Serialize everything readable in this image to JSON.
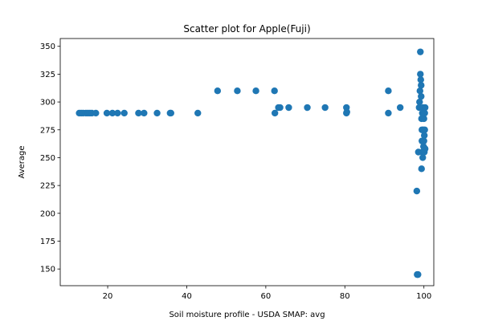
{
  "chart_data": {
    "type": "scatter",
    "title": "Scatter plot for Apple(Fuji)",
    "xlabel": "Soil moisture profile - USDA SMAP: avg",
    "ylabel": "Average",
    "xlim": [
      8,
      102.5
    ],
    "ylim": [
      135,
      357
    ],
    "xticks": [
      20,
      40,
      60,
      80,
      100
    ],
    "yticks": [
      150,
      175,
      200,
      225,
      250,
      275,
      300,
      325,
      350
    ],
    "grid": false,
    "marker_color": "#1f77b4",
    "points": [
      [
        12.8,
        290
      ],
      [
        13.3,
        290
      ],
      [
        13.8,
        290
      ],
      [
        14.5,
        290
      ],
      [
        15.0,
        290
      ],
      [
        15.5,
        290
      ],
      [
        16.0,
        290
      ],
      [
        17.0,
        290
      ],
      [
        19.8,
        290
      ],
      [
        21.2,
        290
      ],
      [
        22.5,
        290
      ],
      [
        24.2,
        290
      ],
      [
        27.8,
        290
      ],
      [
        29.2,
        290
      ],
      [
        32.5,
        290
      ],
      [
        35.8,
        290
      ],
      [
        36.0,
        290
      ],
      [
        42.8,
        290
      ],
      [
        47.8,
        310
      ],
      [
        52.8,
        310
      ],
      [
        57.5,
        310
      ],
      [
        62.2,
        310
      ],
      [
        62.3,
        290
      ],
      [
        63.2,
        295
      ],
      [
        63.6,
        295
      ],
      [
        65.8,
        295
      ],
      [
        70.5,
        295
      ],
      [
        75.0,
        295
      ],
      [
        80.4,
        295
      ],
      [
        80.4,
        290
      ],
      [
        80.5,
        291
      ],
      [
        91.0,
        310
      ],
      [
        91.0,
        290
      ],
      [
        94.0,
        295
      ],
      [
        98.2,
        220
      ],
      [
        98.3,
        145
      ],
      [
        98.5,
        145
      ],
      [
        98.6,
        255
      ],
      [
        98.8,
        295
      ],
      [
        98.9,
        300
      ],
      [
        99.0,
        310
      ],
      [
        99.1,
        345
      ],
      [
        99.1,
        325
      ],
      [
        99.2,
        320
      ],
      [
        99.3,
        315
      ],
      [
        99.3,
        305
      ],
      [
        99.4,
        285
      ],
      [
        99.4,
        240
      ],
      [
        99.5,
        275
      ],
      [
        99.5,
        265
      ],
      [
        99.6,
        290
      ],
      [
        99.6,
        255
      ],
      [
        99.7,
        250
      ],
      [
        99.8,
        275
      ],
      [
        99.8,
        295
      ],
      [
        99.9,
        260
      ],
      [
        100.0,
        285
      ],
      [
        100.0,
        265
      ],
      [
        100.1,
        270
      ],
      [
        100.1,
        255
      ],
      [
        100.2,
        275
      ],
      [
        100.2,
        290
      ],
      [
        100.3,
        295
      ],
      [
        100.3,
        258
      ]
    ]
  }
}
